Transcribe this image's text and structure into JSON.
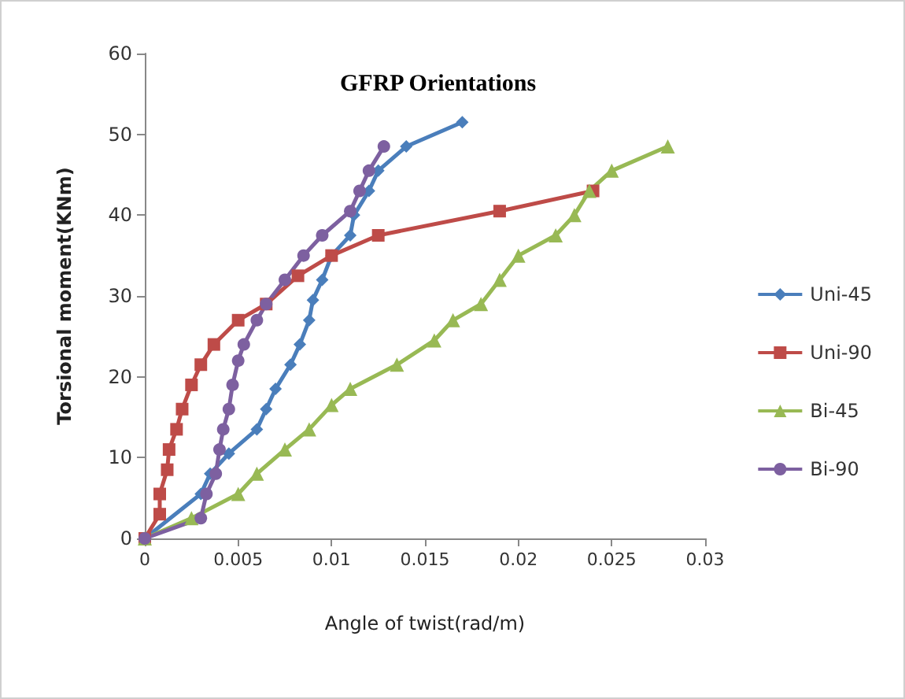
{
  "chart_data": {
    "type": "line",
    "title": "GFRP Orientations",
    "xlabel": "Angle of twist(rad/m)",
    "ylabel": "Torsional moment(KNm)",
    "xlim": [
      0,
      0.03
    ],
    "xticks": [
      0,
      0.005,
      0.01,
      0.015,
      0.02,
      0.025,
      0.03
    ],
    "ylim": [
      0,
      60
    ],
    "yticks": [
      0,
      10,
      20,
      30,
      40,
      50,
      60
    ],
    "grid": false,
    "legend": "right",
    "series": [
      {
        "name": "Uni-45",
        "color": "#4a7ebb",
        "marker": "diamond",
        "x": [
          0,
          0.003,
          0.0035,
          0.0045,
          0.006,
          0.0065,
          0.007,
          0.0078,
          0.0083,
          0.0088,
          0.009,
          0.0095,
          0.01,
          0.011,
          0.0112,
          0.012,
          0.0125,
          0.014,
          0.017
        ],
        "values": [
          0,
          5.5,
          8,
          10.5,
          13.5,
          16,
          18.5,
          21.5,
          24,
          27,
          29.5,
          32,
          35,
          37.5,
          40,
          43,
          45.5,
          48.5,
          51.5
        ]
      },
      {
        "name": "Uni-90",
        "color": "#be4b48",
        "marker": "square",
        "x": [
          0,
          0.0008,
          0.0008,
          0.0012,
          0.0013,
          0.0017,
          0.002,
          0.0025,
          0.003,
          0.0037,
          0.005,
          0.0065,
          0.0082,
          0.01,
          0.0125,
          0.019,
          0.024
        ],
        "values": [
          0,
          3,
          5.5,
          8.5,
          11,
          13.5,
          16,
          19,
          21.5,
          24,
          27,
          29,
          32.5,
          35,
          37.5,
          40.5,
          43
        ]
      },
      {
        "name": "Bi-45",
        "color": "#98b954",
        "marker": "triangle",
        "x": [
          0,
          0.0025,
          0.005,
          0.006,
          0.0075,
          0.0088,
          0.01,
          0.011,
          0.0135,
          0.0155,
          0.0165,
          0.018,
          0.019,
          0.02,
          0.022,
          0.023,
          0.0238,
          0.025,
          0.028
        ],
        "values": [
          0,
          2.5,
          5.5,
          8,
          11,
          13.5,
          16.5,
          18.5,
          21.5,
          24.5,
          27,
          29,
          32,
          35,
          37.5,
          40,
          43,
          45.5,
          48.5
        ]
      },
      {
        "name": "Bi-90",
        "color": "#7d60a0",
        "marker": "circle",
        "x": [
          0,
          0.003,
          0.0033,
          0.0038,
          0.004,
          0.0042,
          0.0045,
          0.0047,
          0.005,
          0.0053,
          0.006,
          0.0065,
          0.0075,
          0.0085,
          0.0095,
          0.011,
          0.0115,
          0.012,
          0.0128
        ],
        "values": [
          0,
          2.5,
          5.5,
          8,
          11,
          13.5,
          16,
          19,
          22,
          24,
          27,
          29,
          32,
          35,
          37.5,
          40.5,
          43,
          45.5,
          48.5
        ]
      }
    ]
  }
}
